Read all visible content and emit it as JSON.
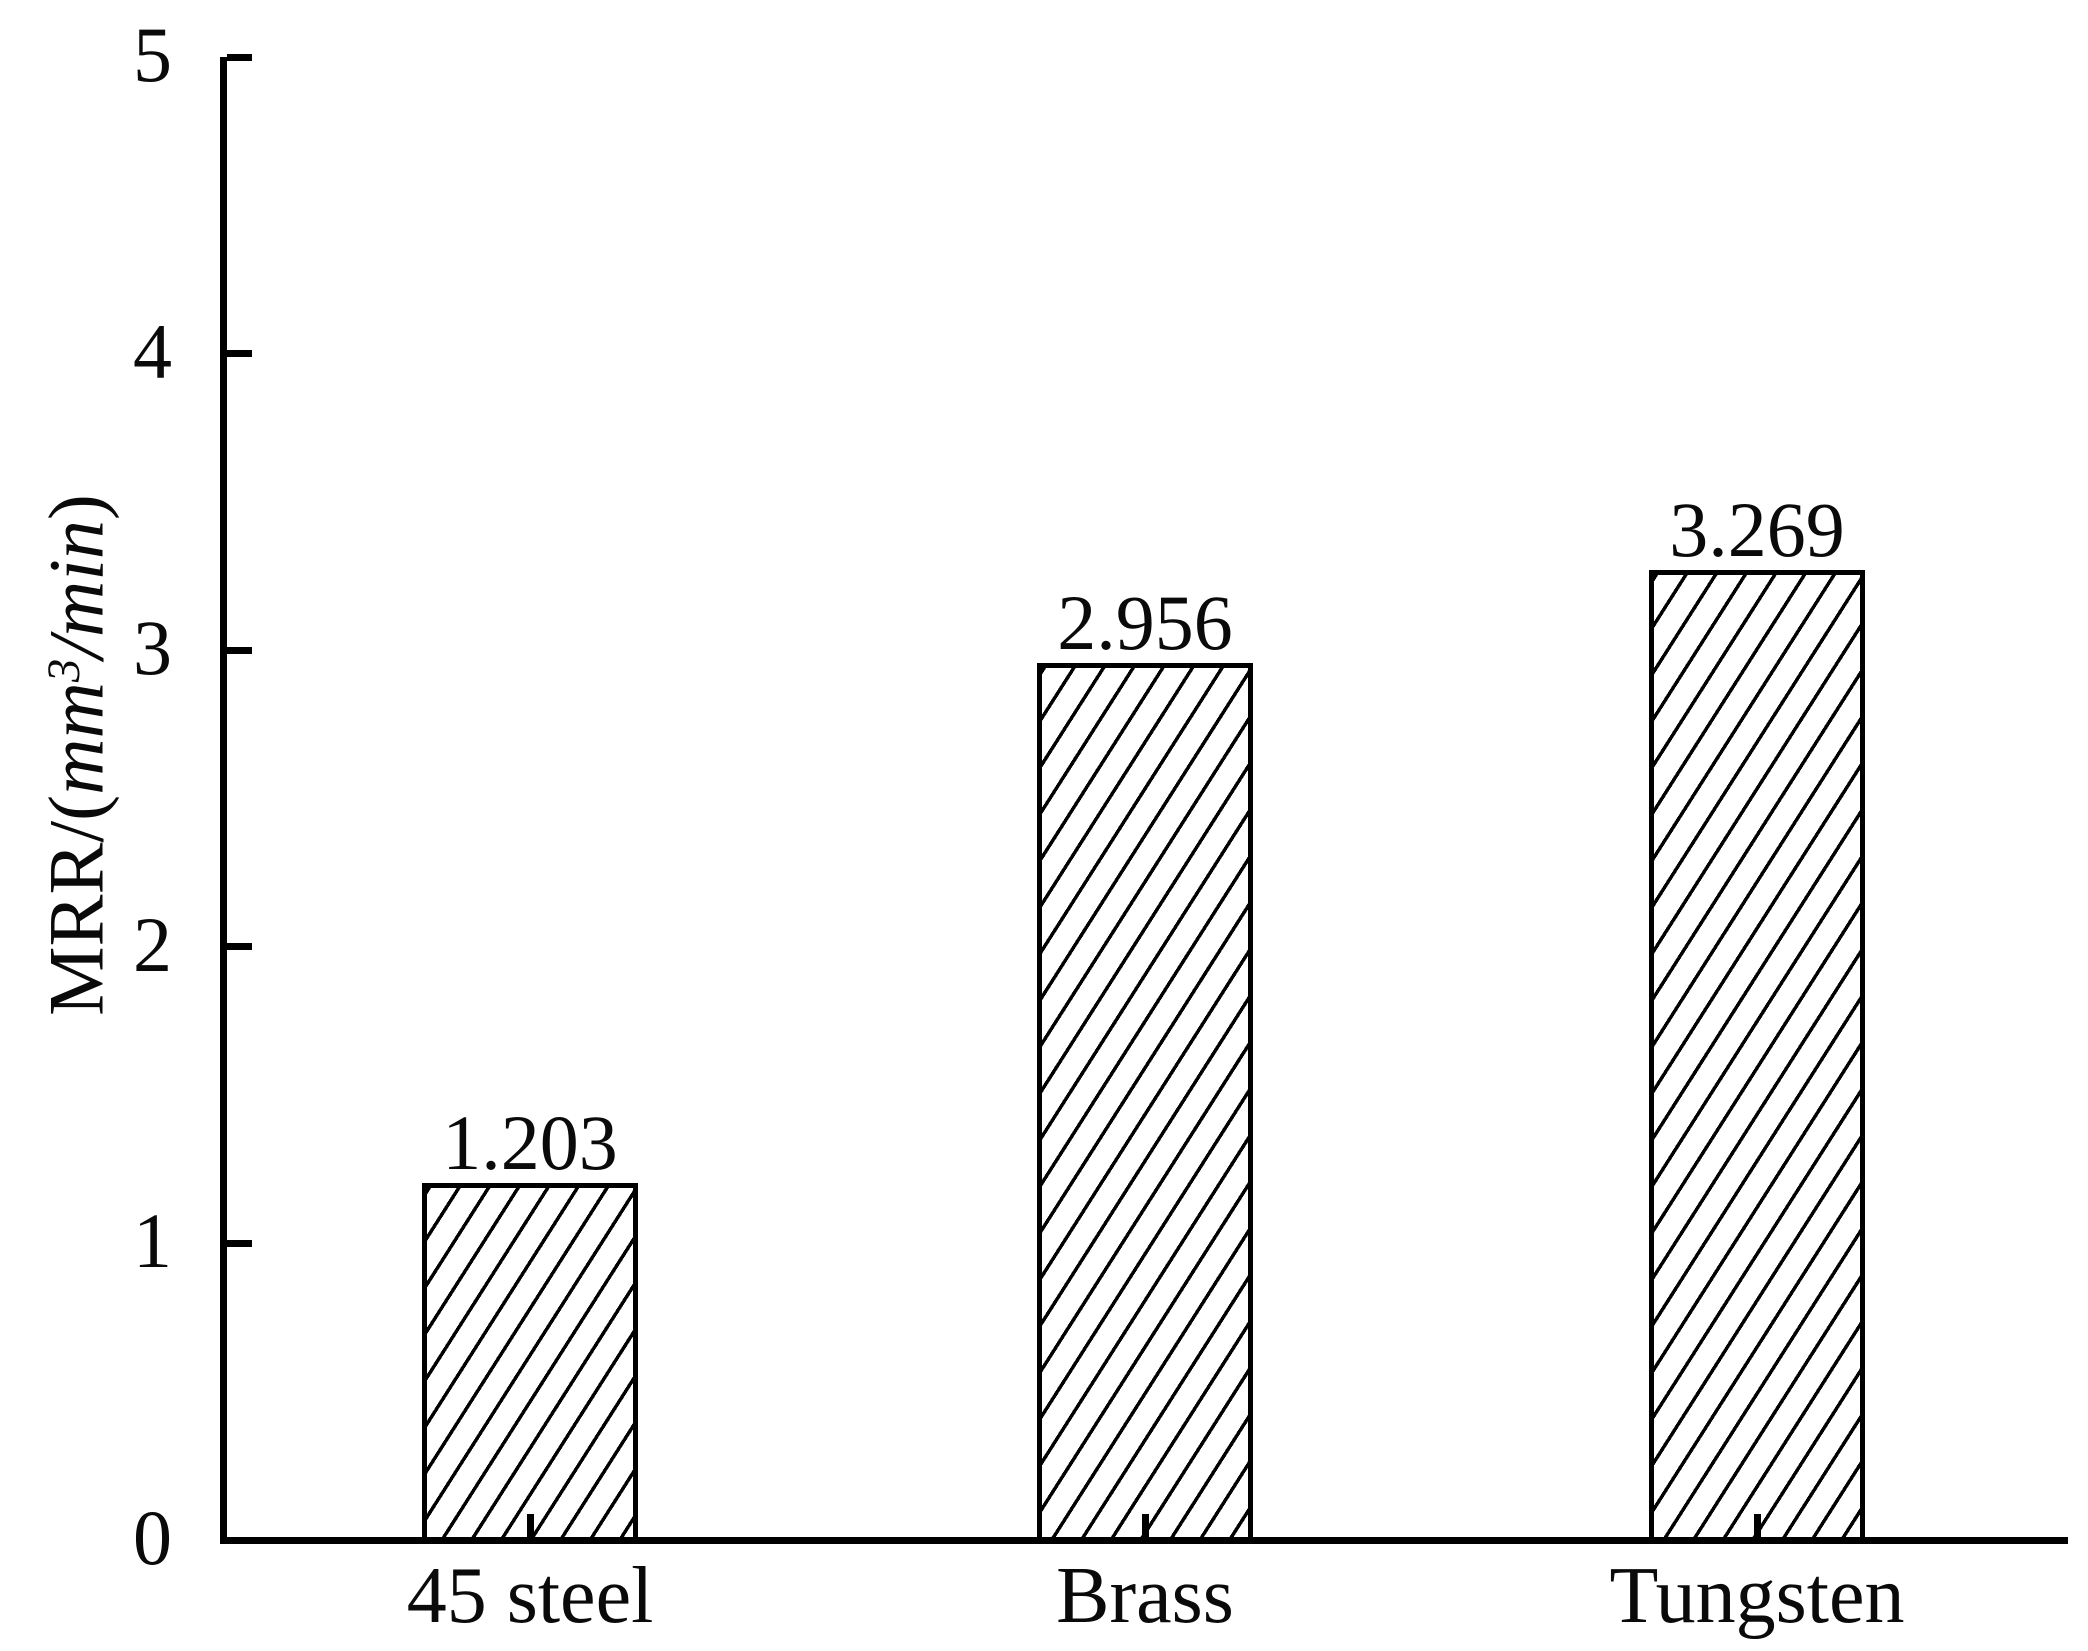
{
  "chart_data": {
    "type": "bar",
    "title": "",
    "categories": [
      "45 steel",
      "Brass",
      "Tungsten"
    ],
    "values": [
      1.203,
      2.956,
      3.269
    ],
    "value_labels": [
      "1.203",
      "2.956",
      "3.269"
    ],
    "xlabel": "",
    "ylabel": "MRR/(mm3/min)",
    "ylabel_parts": {
      "prefix": "MRR/(",
      "mm": "mm",
      "sup3": "3",
      "slash": "/",
      "min": "min",
      "suffix": ")"
    },
    "ylim": [
      0,
      5
    ],
    "yticks": [
      "0",
      "1",
      "2",
      "3",
      "4",
      "5"
    ],
    "grid": false,
    "legend": false,
    "bar_style": "diagonal-hatch",
    "colors": {
      "foreground": "#000000",
      "background": "#ffffff"
    }
  }
}
